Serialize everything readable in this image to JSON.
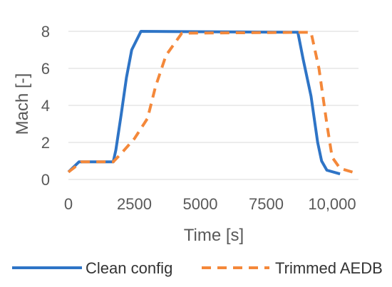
{
  "chart_data": {
    "type": "line",
    "xlabel": "Time [s]",
    "ylabel": "Mach [-]",
    "xlim": [
      0,
      11000
    ],
    "ylim": [
      0,
      9
    ],
    "x_ticks": [
      0,
      2500,
      5000,
      7500,
      10000
    ],
    "x_tick_labels": [
      "0",
      "2500",
      "5000",
      "7500",
      "10,000"
    ],
    "y_ticks": [
      0,
      2,
      4,
      6,
      8
    ],
    "y_tick_labels": [
      "0",
      "2",
      "4",
      "6",
      "8"
    ],
    "grid": "horizontal",
    "legend_position": "bottom",
    "series": [
      {
        "name": "Clean config",
        "color": "#2e74c6",
        "dash": "solid",
        "points": [
          [
            0,
            0.4
          ],
          [
            400,
            0.95
          ],
          [
            1700,
            0.95
          ],
          [
            1800,
            1.6
          ],
          [
            2000,
            3.5
          ],
          [
            2200,
            5.5
          ],
          [
            2400,
            7.0
          ],
          [
            2750,
            8.0
          ],
          [
            8700,
            7.95
          ],
          [
            8900,
            6.5
          ],
          [
            9200,
            4.5
          ],
          [
            9450,
            2.0
          ],
          [
            9600,
            1.0
          ],
          [
            9800,
            0.5
          ],
          [
            10300,
            0.3
          ]
        ]
      },
      {
        "name": "Trimmed AEDB",
        "color": "#f4883a",
        "dash": "dashed",
        "points": [
          [
            0,
            0.4
          ],
          [
            500,
            0.95
          ],
          [
            1700,
            0.95
          ],
          [
            2000,
            1.4
          ],
          [
            2500,
            2.2
          ],
          [
            3000,
            3.3
          ],
          [
            3300,
            5.0
          ],
          [
            3700,
            6.7
          ],
          [
            4300,
            7.9
          ],
          [
            9200,
            7.95
          ],
          [
            9500,
            6.0
          ],
          [
            9800,
            3.0
          ],
          [
            10000,
            1.2
          ],
          [
            10300,
            0.6
          ],
          [
            11000,
            0.3
          ]
        ]
      }
    ]
  }
}
